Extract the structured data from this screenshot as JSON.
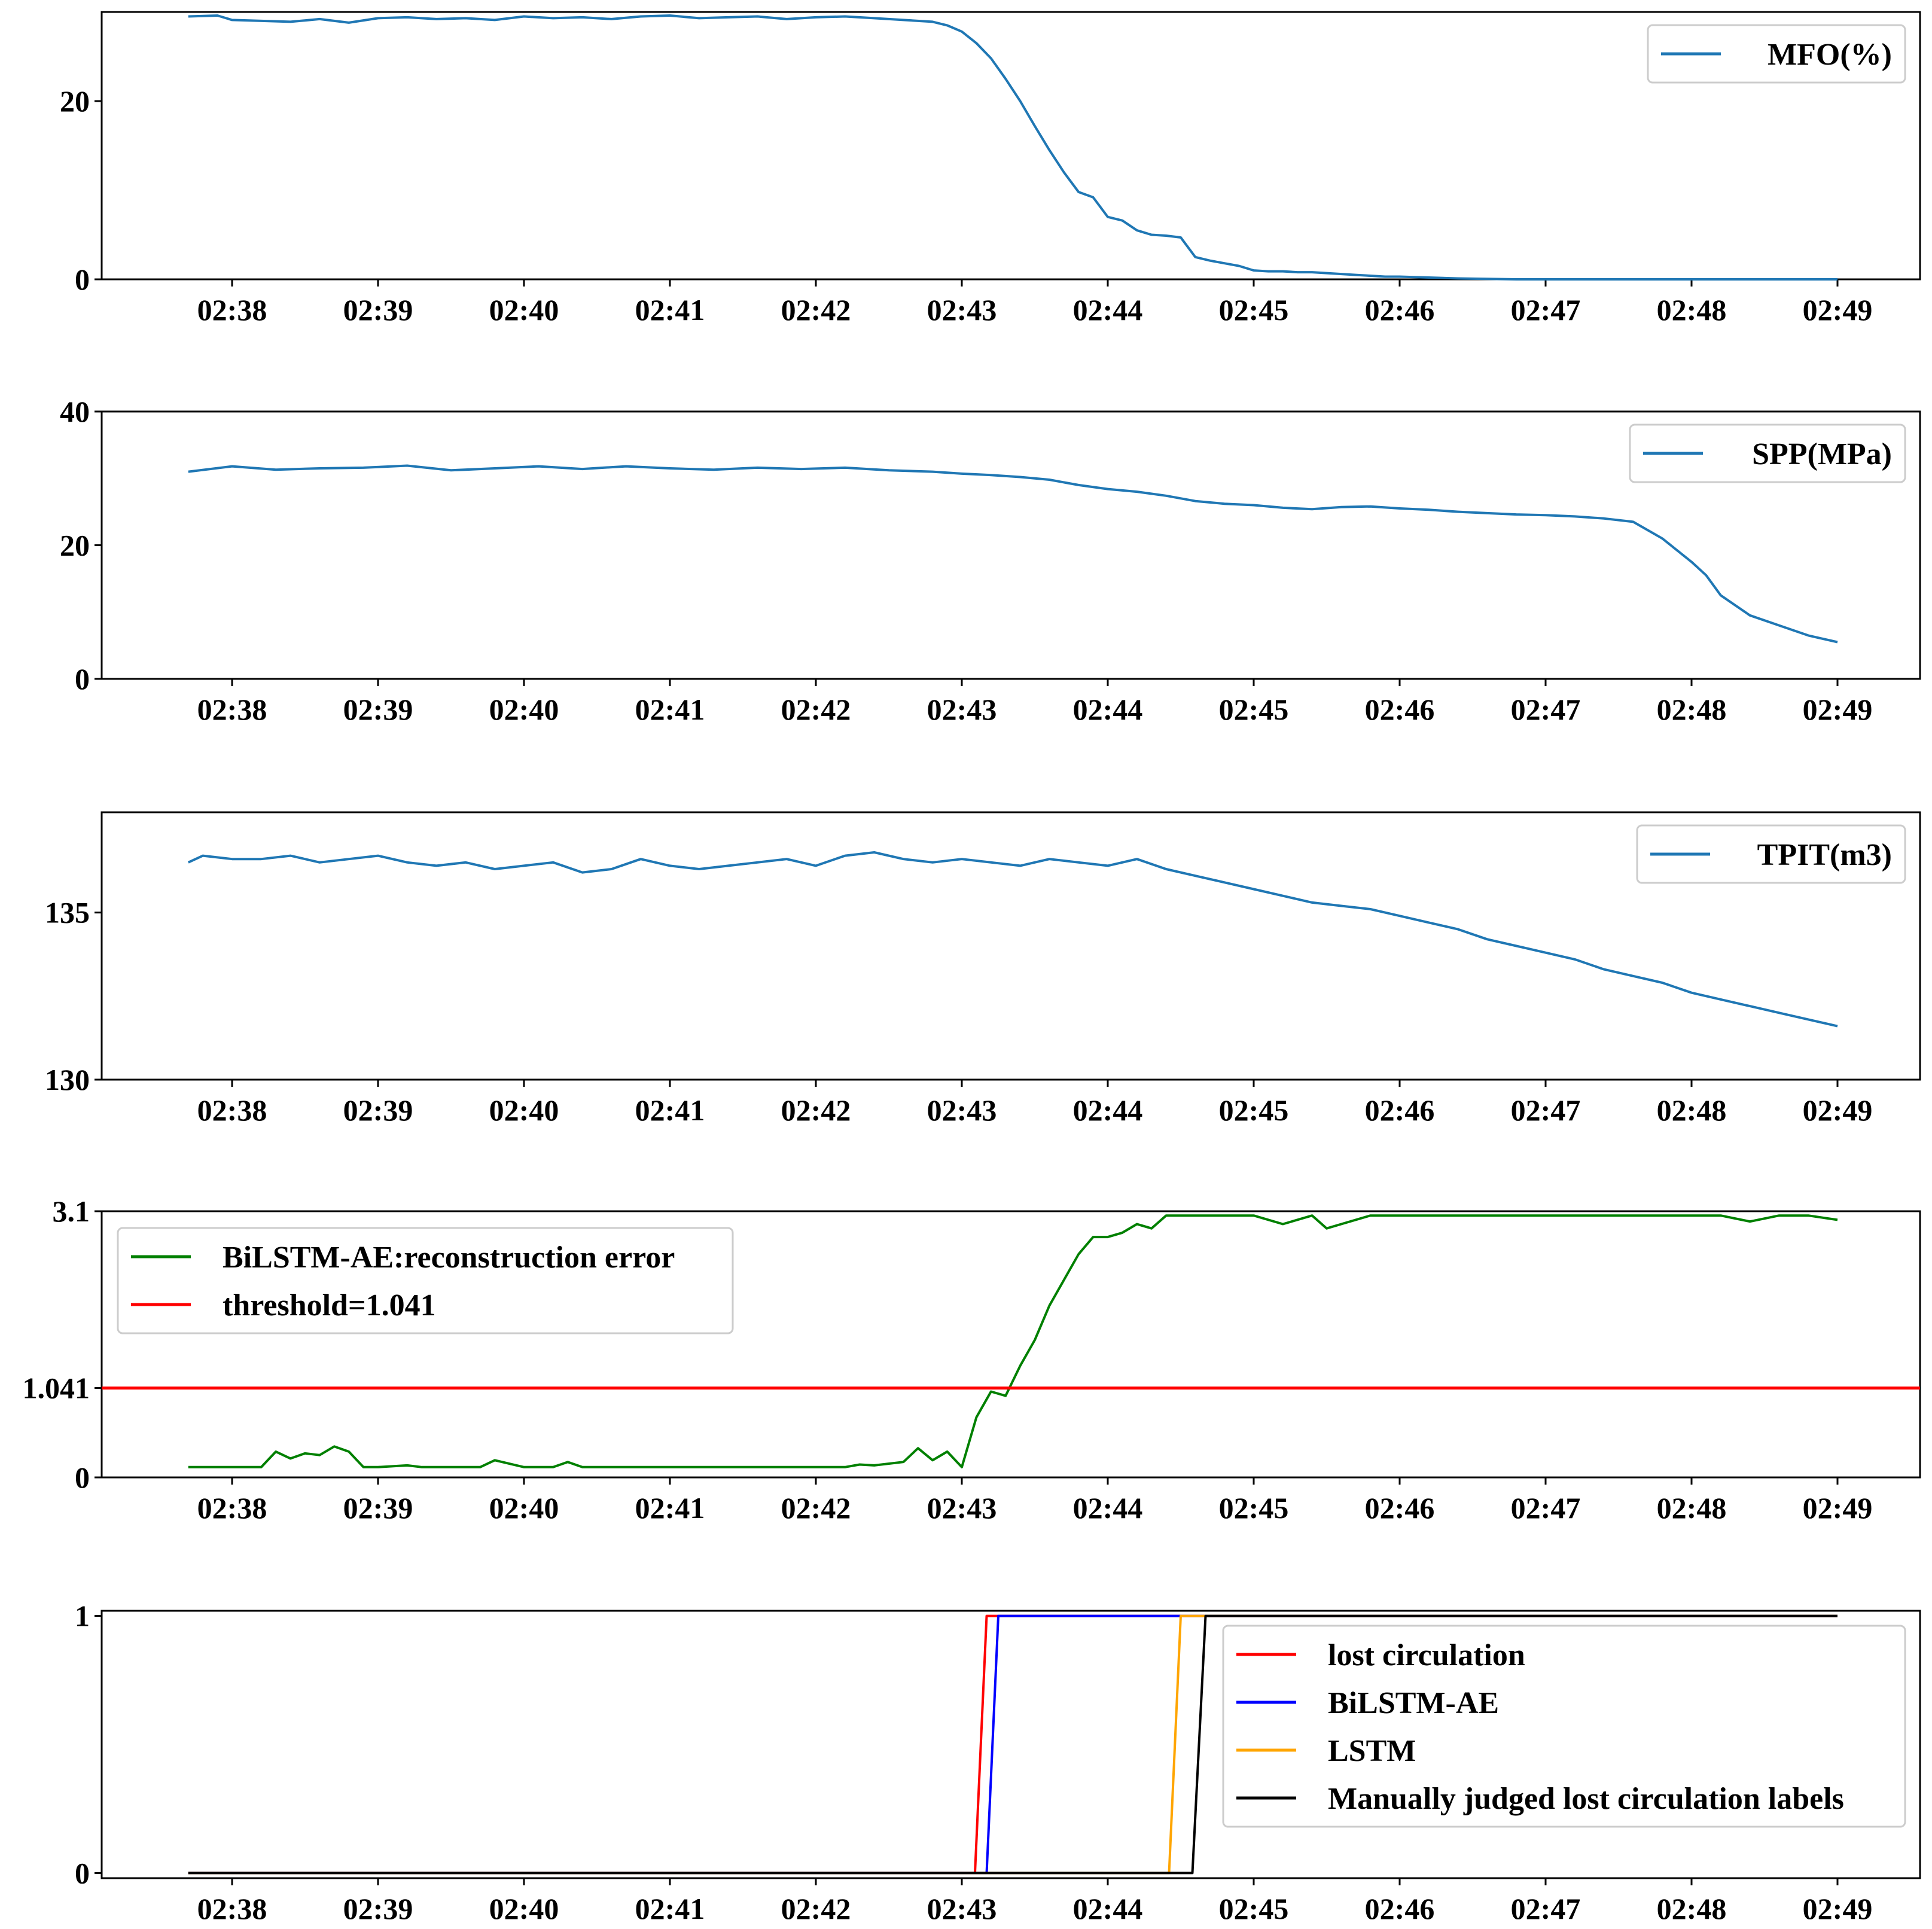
{
  "chart_data": [
    {
      "id": "mfo",
      "type": "line",
      "x_ticks": [
        "02:38",
        "02:39",
        "02:40",
        "02:41",
        "02:42",
        "02:43",
        "02:44",
        "02:45",
        "02:46",
        "02:47",
        "02:48",
        "02:49"
      ],
      "x_range_min": [
        37.7,
        49.0
      ],
      "ylim": [
        0,
        30
      ],
      "y_ticks": [
        {
          "value": 0,
          "label": "0"
        },
        {
          "value": 20,
          "label": "20"
        }
      ],
      "legend_position": "top-right",
      "series": [
        {
          "name": "MFO(%)",
          "color": "#1f77b4",
          "x": [
            37.7,
            37.9,
            38.0,
            38.2,
            38.4,
            38.6,
            38.8,
            39.0,
            39.2,
            39.4,
            39.6,
            39.8,
            40.0,
            40.2,
            40.4,
            40.6,
            40.8,
            41.0,
            41.2,
            41.4,
            41.6,
            41.8,
            42.0,
            42.2,
            42.4,
            42.6,
            42.8,
            42.9,
            43.0,
            43.1,
            43.2,
            43.3,
            43.4,
            43.5,
            43.6,
            43.7,
            43.8,
            43.9,
            44.0,
            44.1,
            44.2,
            44.3,
            44.4,
            44.5,
            44.6,
            44.7,
            44.8,
            44.9,
            45.0,
            45.1,
            45.2,
            45.3,
            45.4,
            45.5,
            45.6,
            45.7,
            45.8,
            45.9,
            46.0,
            46.2,
            46.4,
            46.6,
            46.8,
            47.0,
            47.5,
            48.0,
            48.5,
            49.0
          ],
          "y": [
            29.5,
            29.6,
            29.1,
            29.0,
            28.9,
            29.2,
            28.8,
            29.3,
            29.4,
            29.2,
            29.3,
            29.1,
            29.5,
            29.3,
            29.4,
            29.2,
            29.5,
            29.6,
            29.3,
            29.4,
            29.5,
            29.2,
            29.4,
            29.5,
            29.3,
            29.1,
            28.9,
            28.5,
            27.8,
            26.5,
            24.8,
            22.5,
            20.0,
            17.2,
            14.5,
            12.0,
            9.8,
            9.2,
            7.0,
            6.6,
            5.5,
            5.0,
            4.9,
            4.7,
            2.5,
            2.1,
            1.8,
            1.5,
            1.0,
            0.9,
            0.9,
            0.8,
            0.8,
            0.7,
            0.6,
            0.5,
            0.4,
            0.3,
            0.3,
            0.2,
            0.1,
            0.05,
            0.0,
            0.0,
            0.0,
            0.0,
            0.0,
            0.0
          ]
        }
      ]
    },
    {
      "id": "spp",
      "type": "line",
      "x_ticks": [
        "02:38",
        "02:39",
        "02:40",
        "02:41",
        "02:42",
        "02:43",
        "02:44",
        "02:45",
        "02:46",
        "02:47",
        "02:48",
        "02:49"
      ],
      "x_range_min": [
        37.7,
        49.0
      ],
      "ylim": [
        0,
        40
      ],
      "y_ticks": [
        {
          "value": 0,
          "label": "0"
        },
        {
          "value": 20,
          "label": "20"
        },
        {
          "value": 40,
          "label": "40"
        }
      ],
      "legend_position": "top-right",
      "series": [
        {
          "name": "SPP(MPa)",
          "color": "#1f77b4",
          "x": [
            37.7,
            38.0,
            38.3,
            38.6,
            38.9,
            39.2,
            39.5,
            39.8,
            40.1,
            40.4,
            40.7,
            41.0,
            41.3,
            41.6,
            41.9,
            42.2,
            42.5,
            42.8,
            43.0,
            43.2,
            43.4,
            43.6,
            43.8,
            44.0,
            44.2,
            44.4,
            44.6,
            44.8,
            45.0,
            45.2,
            45.4,
            45.6,
            45.8,
            46.0,
            46.2,
            46.4,
            46.6,
            46.8,
            47.0,
            47.2,
            47.4,
            47.6,
            47.8,
            48.0,
            48.1,
            48.2,
            48.4,
            48.6,
            48.8,
            49.0
          ],
          "y": [
            31.0,
            31.8,
            31.3,
            31.5,
            31.6,
            31.9,
            31.2,
            31.5,
            31.8,
            31.4,
            31.8,
            31.5,
            31.3,
            31.6,
            31.4,
            31.6,
            31.2,
            31.0,
            30.7,
            30.5,
            30.2,
            29.8,
            29.0,
            28.4,
            28.0,
            27.4,
            26.6,
            26.2,
            26.0,
            25.6,
            25.4,
            25.7,
            25.8,
            25.5,
            25.3,
            25.0,
            24.8,
            24.6,
            24.5,
            24.3,
            24.0,
            23.5,
            21.0,
            17.5,
            15.5,
            12.5,
            9.5,
            8.0,
            6.5,
            5.5
          ]
        }
      ]
    },
    {
      "id": "tpit",
      "type": "line",
      "x_ticks": [
        "02:38",
        "02:39",
        "02:40",
        "02:41",
        "02:42",
        "02:43",
        "02:44",
        "02:45",
        "02:46",
        "02:47",
        "02:48",
        "02:49"
      ],
      "x_range_min": [
        37.7,
        49.0
      ],
      "ylim": [
        130,
        138
      ],
      "y_ticks": [
        {
          "value": 130,
          "label": "130"
        },
        {
          "value": 135,
          "label": "135"
        }
      ],
      "legend_position": "top-right",
      "series": [
        {
          "name": "TPIT(m3)",
          "color": "#1f77b4",
          "x": [
            37.7,
            37.8,
            38.0,
            38.2,
            38.4,
            38.6,
            38.8,
            39.0,
            39.2,
            39.4,
            39.6,
            39.8,
            40.0,
            40.2,
            40.4,
            40.6,
            40.8,
            41.0,
            41.2,
            41.4,
            41.6,
            41.8,
            42.0,
            42.2,
            42.4,
            42.6,
            42.8,
            43.0,
            43.2,
            43.4,
            43.6,
            43.8,
            44.0,
            44.2,
            44.4,
            44.6,
            44.8,
            45.0,
            45.2,
            45.4,
            45.6,
            45.8,
            46.0,
            46.2,
            46.4,
            46.6,
            46.8,
            47.0,
            47.2,
            47.4,
            47.6,
            47.8,
            48.0,
            48.2,
            48.4,
            48.6,
            48.8,
            49.0
          ],
          "y": [
            136.5,
            136.7,
            136.6,
            136.6,
            136.7,
            136.5,
            136.6,
            136.7,
            136.5,
            136.4,
            136.5,
            136.3,
            136.4,
            136.5,
            136.2,
            136.3,
            136.6,
            136.4,
            136.3,
            136.4,
            136.5,
            136.6,
            136.4,
            136.7,
            136.8,
            136.6,
            136.5,
            136.6,
            136.5,
            136.4,
            136.6,
            136.5,
            136.4,
            136.6,
            136.3,
            136.1,
            135.9,
            135.7,
            135.5,
            135.3,
            135.2,
            135.1,
            134.9,
            134.7,
            134.5,
            134.2,
            134.0,
            133.8,
            133.6,
            133.3,
            133.1,
            132.9,
            132.6,
            132.4,
            132.2,
            132.0,
            131.8,
            131.6
          ]
        }
      ]
    },
    {
      "id": "reconstruction-error",
      "type": "line",
      "x_ticks": [
        "02:38",
        "02:39",
        "02:40",
        "02:41",
        "02:42",
        "02:43",
        "02:44",
        "02:45",
        "02:46",
        "02:47",
        "02:48",
        "02:49"
      ],
      "x_range_min": [
        37.7,
        49.0
      ],
      "ylim": [
        0,
        3.1
      ],
      "y_ticks": [
        {
          "value": 0,
          "label": "0"
        },
        {
          "value": 1.041,
          "label": "1.041"
        },
        {
          "value": 3.1,
          "label": "3.1"
        }
      ],
      "legend_position": "top-left",
      "series": [
        {
          "name": "BiLSTM-AE:reconstruction error",
          "color": "#008000",
          "x": [
            37.7,
            38.0,
            38.2,
            38.3,
            38.4,
            38.5,
            38.6,
            38.7,
            38.8,
            38.9,
            39.0,
            39.2,
            39.3,
            39.5,
            39.7,
            39.8,
            40.0,
            40.2,
            40.3,
            40.4,
            40.6,
            40.8,
            41.0,
            41.2,
            41.4,
            41.6,
            41.8,
            42.0,
            42.2,
            42.3,
            42.4,
            42.6,
            42.7,
            42.8,
            42.9,
            43.0,
            43.1,
            43.2,
            43.3,
            43.4,
            43.5,
            43.6,
            43.7,
            43.8,
            43.9,
            44.0,
            44.1,
            44.2,
            44.3,
            44.4,
            44.5,
            44.6,
            44.8,
            45.0,
            45.2,
            45.4,
            45.5,
            45.6,
            45.8,
            46.0,
            46.2,
            46.4,
            46.6,
            46.8,
            47.0,
            47.2,
            47.4,
            47.6,
            47.8,
            48.0,
            48.2,
            48.4,
            48.6,
            48.8,
            49.0
          ],
          "y": [
            0.12,
            0.12,
            0.12,
            0.3,
            0.22,
            0.28,
            0.26,
            0.36,
            0.3,
            0.12,
            0.12,
            0.14,
            0.12,
            0.12,
            0.12,
            0.2,
            0.12,
            0.12,
            0.18,
            0.12,
            0.12,
            0.12,
            0.12,
            0.12,
            0.12,
            0.12,
            0.12,
            0.12,
            0.12,
            0.15,
            0.14,
            0.18,
            0.34,
            0.2,
            0.3,
            0.12,
            0.7,
            1.0,
            0.95,
            1.3,
            1.6,
            2.0,
            2.3,
            2.6,
            2.8,
            2.8,
            2.85,
            2.95,
            2.9,
            3.05,
            3.05,
            3.05,
            3.05,
            3.05,
            2.95,
            3.05,
            2.9,
            2.95,
            3.05,
            3.05,
            3.05,
            3.05,
            3.05,
            3.05,
            3.05,
            3.05,
            3.05,
            3.05,
            3.05,
            3.05,
            3.05,
            2.98,
            3.05,
            3.05,
            3.0
          ]
        },
        {
          "name": "threshold=1.041",
          "color": "#ff0000",
          "constant": 1.041
        }
      ]
    },
    {
      "id": "labels",
      "type": "line",
      "x_ticks": [
        "02:38",
        "02:39",
        "02:40",
        "02:41",
        "02:42",
        "02:43",
        "02:44",
        "02:45",
        "02:46",
        "02:47",
        "02:48",
        "02:49"
      ],
      "x_range_min": [
        37.7,
        49.0
      ],
      "ylim": [
        -0.02,
        1.02
      ],
      "y_ticks": [
        {
          "value": 0,
          "label": "0"
        },
        {
          "value": 1,
          "label": "1"
        }
      ],
      "legend_position": "right",
      "series": [
        {
          "name": "lost circulation",
          "color": "#ff0000",
          "x": [
            37.7,
            43.09,
            43.17,
            49.0
          ],
          "y": [
            0,
            0,
            1,
            1
          ]
        },
        {
          "name": "BiLSTM-AE",
          "color": "#0000ff",
          "x": [
            37.7,
            43.17,
            43.25,
            49.0
          ],
          "y": [
            0,
            0,
            1,
            1
          ]
        },
        {
          "name": "LSTM",
          "color": "#ffa500",
          "x": [
            37.7,
            44.42,
            44.5,
            49.0
          ],
          "y": [
            0,
            0,
            1,
            1
          ]
        },
        {
          "name": "Manually judged lost circulation labels",
          "color": "#000000",
          "x": [
            37.7,
            44.58,
            44.67,
            49.0
          ],
          "y": [
            0,
            0,
            1,
            1
          ]
        }
      ]
    }
  ]
}
